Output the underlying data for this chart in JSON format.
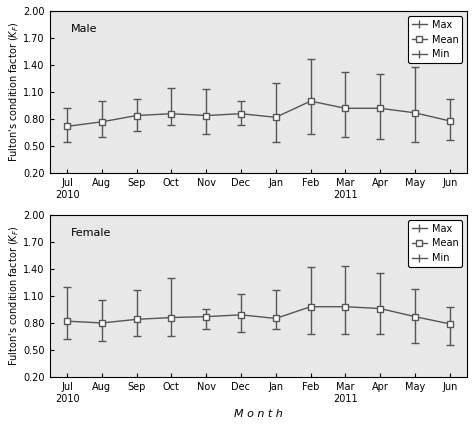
{
  "months": [
    "Jul\n2010",
    "Aug",
    "Sep",
    "Oct",
    "Nov",
    "Dec",
    "Jan",
    "Feb",
    "Mar\n2011",
    "Apr",
    "May",
    "Jun"
  ],
  "male": {
    "mean": [
      0.72,
      0.77,
      0.84,
      0.86,
      0.84,
      0.86,
      0.82,
      1.0,
      0.92,
      0.92,
      0.87,
      0.78
    ],
    "max": [
      0.92,
      1.0,
      1.02,
      1.15,
      1.13,
      1.0,
      1.2,
      1.47,
      1.32,
      1.3,
      1.38,
      1.02
    ],
    "min": [
      0.55,
      0.6,
      0.67,
      0.73,
      0.63,
      0.73,
      0.55,
      0.63,
      0.6,
      0.58,
      0.55,
      0.57
    ]
  },
  "female": {
    "mean": [
      0.82,
      0.8,
      0.84,
      0.86,
      0.87,
      0.89,
      0.85,
      0.98,
      0.98,
      0.96,
      0.87,
      0.79
    ],
    "max": [
      1.2,
      1.05,
      1.17,
      1.3,
      0.95,
      1.12,
      1.17,
      1.42,
      1.43,
      1.35,
      1.18,
      0.98
    ],
    "min": [
      0.62,
      0.6,
      0.65,
      0.65,
      0.73,
      0.7,
      0.73,
      0.68,
      0.68,
      0.68,
      0.58,
      0.55
    ]
  },
  "ylabel": "Fulton's condition factor ($K_F$)",
  "xlabel": "M o n t h",
  "ylim": [
    0.2,
    2.0
  ],
  "yticks": [
    0.2,
    0.5,
    0.8,
    1.1,
    1.4,
    1.7,
    2.0
  ],
  "panel_labels": [
    "Male",
    "Female"
  ],
  "legend_labels": [
    "Max",
    "Mean",
    "Min"
  ],
  "line_color": "#555555",
  "marker_color": "white",
  "marker_edge_color": "#555555",
  "bg_color": "#e8e8e8"
}
